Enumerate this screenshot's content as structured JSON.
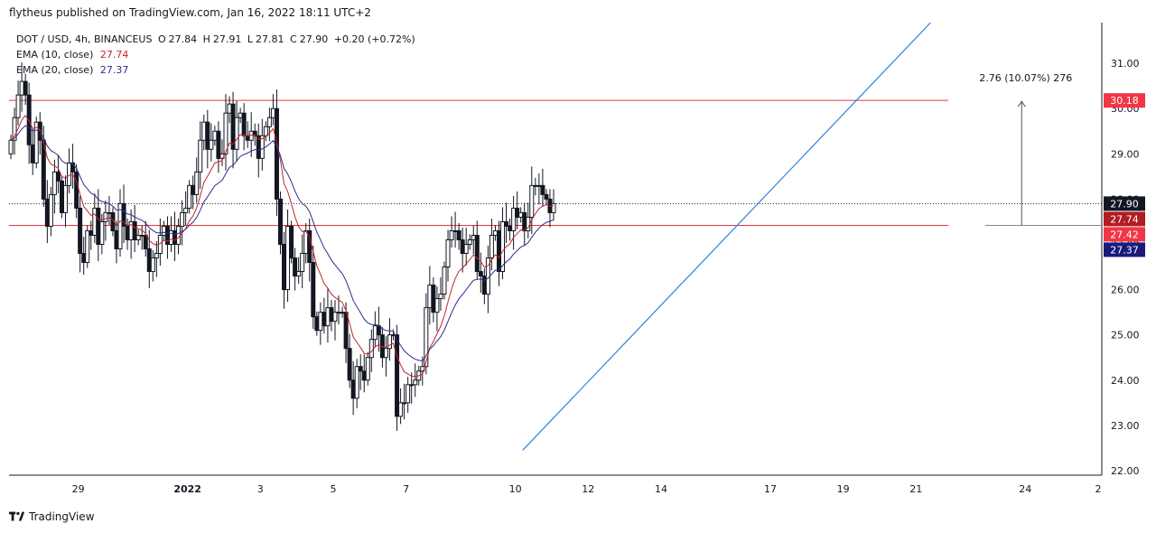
{
  "header": {
    "published": "flytheus published on TradingView.com, Jan 16, 2022 18:11 UTC+2"
  },
  "legend": {
    "symbol": "DOT / USD, 4h, BINANCEUS",
    "open_label": "O",
    "open": "27.84",
    "high_label": "H",
    "high": "27.91",
    "low_label": "L",
    "low": "27.81",
    "close_label": "C",
    "close": "27.90",
    "change": "+0.20 (+0.72%)",
    "ema10_label": "EMA (10, close)",
    "ema10_value": "27.74",
    "ema20_label": "EMA (20, close)",
    "ema20_value": "27.37"
  },
  "footer": {
    "brand": "TradingView"
  },
  "colors": {
    "ema10": "#c2262c",
    "ema20": "#2f2c8c",
    "hline": "#e03a3e",
    "trendline": "#2f7fe0",
    "tag_close": "#131722",
    "tag_ema10": "#b11b22",
    "tag_level": "#f23645",
    "tag_ema20": "#1a1a7a"
  },
  "chart_data": {
    "type": "candlestick",
    "symbol": "DOT / USD",
    "timeframe": "4h",
    "y_ticks": [
      22,
      23,
      24,
      25,
      26,
      27,
      28,
      29,
      30,
      31
    ],
    "y_tick_labels": [
      "22.00",
      "23.00",
      "24.00",
      "25.00",
      "26.00",
      "27.00",
      "28.00",
      "29.00",
      "30.00",
      "31.00"
    ],
    "ylim": [
      21.9,
      31.9
    ],
    "x_ticks": [
      {
        "label": "29",
        "bar": 19
      },
      {
        "label": "2022",
        "bar": 49
      },
      {
        "label": "3",
        "bar": 69
      },
      {
        "label": "5",
        "bar": 89
      },
      {
        "label": "7",
        "bar": 109
      },
      {
        "label": "10",
        "bar": 139
      },
      {
        "label": "12",
        "bar": 159
      },
      {
        "label": "14",
        "bar": 179
      },
      {
        "label": "17",
        "bar": 209
      },
      {
        "label": "19",
        "bar": 229
      },
      {
        "label": "21",
        "bar": 249
      },
      {
        "label": "24",
        "bar": 279
      },
      {
        "label": "2",
        "bar": 299
      }
    ],
    "bar_count_visible": 300,
    "closes": [
      29.3,
      29.8,
      30.3,
      30.6,
      30.3,
      29.2,
      28.8,
      29.7,
      29.3,
      28.0,
      27.4,
      28.1,
      28.6,
      28.4,
      27.7,
      28.3,
      28.8,
      28.6,
      27.8,
      26.8,
      26.6,
      27.3,
      27.2,
      27.8,
      27.0,
      27.5,
      27.7,
      27.7,
      27.3,
      26.9,
      27.9,
      27.4,
      27.1,
      27.5,
      27.1,
      27.2,
      27.2,
      26.9,
      26.4,
      26.7,
      26.8,
      27.2,
      27.4,
      27.0,
      27.3,
      27.0,
      27.4,
      27.7,
      27.8,
      28.3,
      28.1,
      28.6,
      29.3,
      29.7,
      29.1,
      29.3,
      29.5,
      28.9,
      29.0,
      29.9,
      30.1,
      29.1,
      29.8,
      29.9,
      29.4,
      29.3,
      29.5,
      29.4,
      28.9,
      29.4,
      29.6,
      29.8,
      30.0,
      28.0,
      27.0,
      26.0,
      27.4,
      26.7,
      26.3,
      26.4,
      26.8,
      27.3,
      26.6,
      25.4,
      25.1,
      25.5,
      25.2,
      25.6,
      25.3,
      25.5,
      25.5,
      25.5,
      24.7,
      24.0,
      23.6,
      24.3,
      24.2,
      24.0,
      24.5,
      24.9,
      25.2,
      25.0,
      24.5,
      24.7,
      25.0,
      25.0,
      23.2,
      23.5,
      23.5,
      23.9,
      23.9,
      24.0,
      24.2,
      24.3,
      25.6,
      26.1,
      25.5,
      25.8,
      25.9,
      26.5,
      27.1,
      27.3,
      27.3,
      27.1,
      26.8,
      27.0,
      27.1,
      27.2,
      26.4,
      26.3,
      25.9,
      26.7,
      27.2,
      27.3,
      26.4,
      27.5,
      27.4,
      27.3,
      27.8,
      27.6,
      27.7,
      27.3,
      27.6,
      28.3,
      28.3,
      28.3,
      28.1,
      28.0,
      27.7,
      27.9
    ],
    "ema10_last": 27.74,
    "ema20_last": 27.37,
    "last_close": 27.9,
    "horizontal_levels": [
      30.18,
      27.42
    ],
    "price_tags": [
      {
        "label": "30.18",
        "price": 30.18,
        "kind": "level"
      },
      {
        "label": "27.90",
        "price": 27.9,
        "kind": "close"
      },
      {
        "label": "27.74",
        "price": 27.74,
        "kind": "ema10"
      },
      {
        "label": "27.42",
        "price": 27.42,
        "kind": "level"
      },
      {
        "label": "27.37",
        "price": 27.37,
        "kind": "ema20"
      }
    ],
    "trendline": {
      "bar_start": 141,
      "price_start": 22.45,
      "bar_end": 253,
      "price_end": 31.9
    },
    "measure": {
      "label": "2.76 (10.07%) 276",
      "from": 27.42,
      "to": 30.18,
      "bar": 278
    }
  }
}
